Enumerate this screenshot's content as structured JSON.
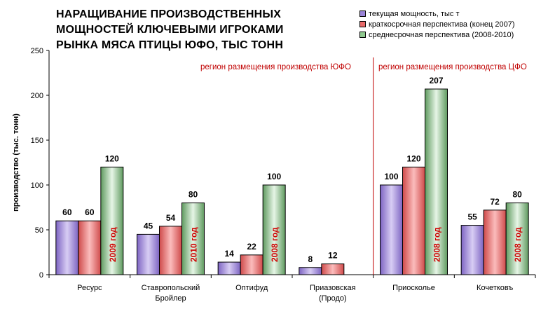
{
  "chart_data": {
    "type": "bar",
    "title_lines": [
      "НАРАЩИВАНИЕ ПРОИЗВОДСТВЕННЫХ",
      "МОЩНОСТЕЙ КЛЮЧЕВЫМИ ИГРОКАМИ",
      "РЫНКА МЯСА ПТИЦЫ ЮФО, ТЫС ТОНН"
    ],
    "ylabel": "производство (тыс. тонн)",
    "ylim": [
      0,
      250
    ],
    "yticks": [
      0,
      50,
      100,
      150,
      200,
      250
    ],
    "grid": false,
    "legend_position": "top-right",
    "categories": [
      [
        "Ресурс"
      ],
      [
        "Ставропольский",
        "Бройлер"
      ],
      [
        "Оптифуд"
      ],
      [
        "Приазовская",
        "(Продо)"
      ],
      [
        "Приосколье"
      ],
      [
        "Кочетковъ"
      ]
    ],
    "series": [
      {
        "name": "текущая мощность, тыс т",
        "color": "#9b84d8",
        "values": [
          60,
          45,
          14,
          8,
          100,
          55
        ]
      },
      {
        "name": "краткосрочная перспектива (конец 2007)",
        "color": "#e86a6a",
        "values": [
          60,
          54,
          22,
          12,
          120,
          72
        ]
      },
      {
        "name": "среднесрочная перспектива (2008-2010)",
        "color": "#8fc98f",
        "values": [
          120,
          80,
          100,
          null,
          207,
          80
        ]
      }
    ],
    "bar_annotations": [
      "2009 год",
      "2010 год",
      "2008 год",
      "",
      "2008 год",
      "2008 год"
    ],
    "regions": [
      {
        "label": "регион размещения производства ЮФО"
      },
      {
        "label": "регион размещения производства ЦФО"
      }
    ]
  }
}
